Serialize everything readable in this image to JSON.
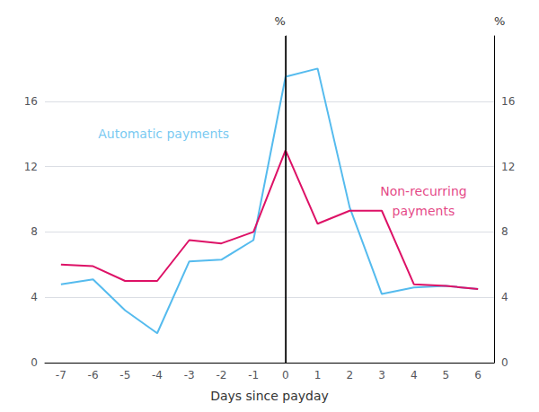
{
  "chart_data": {
    "type": "line",
    "xlabel": "Days since payday",
    "ylabel": "%",
    "y2label": "%",
    "x": [
      -7,
      -6,
      -5,
      -4,
      -3,
      -2,
      -1,
      0,
      1,
      2,
      3,
      4,
      5,
      6
    ],
    "series": [
      {
        "color": "#55BBEE",
        "values": [
          4.8,
          5.1,
          3.2,
          1.8,
          6.2,
          6.3,
          7.5,
          17.5,
          18.0,
          9.5,
          4.2,
          4.6,
          4.7,
          4.5
        ]
      },
      {
        "color": "#DD1166",
        "values": [
          6.0,
          5.9,
          5.0,
          5.0,
          7.5,
          7.3,
          8.0,
          13.0,
          8.5,
          9.3,
          9.3,
          4.8,
          4.7,
          4.5
        ]
      }
    ],
    "xlim": [
      -7.5,
      6.5
    ],
    "xticks": [
      -7,
      -6,
      -5,
      -4,
      -3,
      -2,
      -1,
      0,
      1,
      2,
      3,
      4,
      5,
      6
    ],
    "ylim": [
      0,
      20
    ],
    "yticks": [
      0,
      4,
      8,
      12,
      16
    ],
    "y2lim": [
      0,
      20
    ],
    "y2ticks": [
      0,
      4,
      8,
      12,
      16
    ],
    "grid": true,
    "vline_x": 0,
    "vline_color": "#000000",
    "annotations": [
      {
        "text": "Automatic payments",
        "x": -3.8,
        "y": 14.0,
        "color": "#55BBEE"
      },
      {
        "text": "Non-recurring",
        "x": 4.3,
        "y": 10.5,
        "color": "#DD1166"
      },
      {
        "text": "payments",
        "x": 4.3,
        "y": 9.3,
        "color": "#DD1166"
      }
    ]
  }
}
